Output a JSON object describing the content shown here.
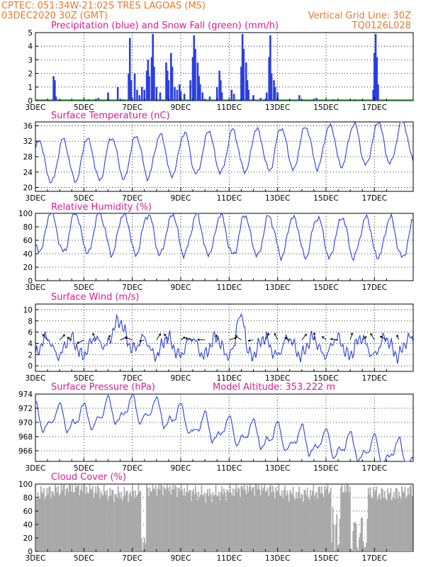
{
  "header": {
    "line1": "CPTEC:   051:34W-21:02S   TRES LAGOAS (MS)",
    "line2": "03DEC2020 30Z (GMT)",
    "right1": "Vertical Grid Line: 30Z",
    "right2": "TQ0126L028"
  },
  "colors": {
    "header": "#e8782a",
    "title": "#e0189b",
    "line": "#2b3fe0",
    "precip": "#2b3fe0",
    "snow": "#22aa22",
    "cloud": "#a9a9a9",
    "wind_arrow": "#000000"
  },
  "x_ticks": [
    "3DEC",
    "5DEC",
    "7DEC",
    "9DEC",
    "11DEC",
    "13DEC",
    "15DEC",
    "17DEC"
  ],
  "chart_data": [
    {
      "type": "bar",
      "title": "Precipitation (blue) and Snow Fall (green) (mm/h)",
      "ylim": [
        0,
        5
      ],
      "yticks": [
        0,
        1,
        2,
        3,
        4,
        5
      ],
      "x_range_days": [
        3,
        18.6
      ],
      "precip": [
        [
          3.75,
          1.8
        ],
        [
          3.8,
          1.5
        ],
        [
          3.85,
          0.3
        ],
        [
          5.2,
          0.1
        ],
        [
          5.6,
          0.2
        ],
        [
          6.0,
          0.6
        ],
        [
          6.4,
          1.0
        ],
        [
          6.6,
          0.1
        ],
        [
          6.85,
          2.0
        ],
        [
          6.9,
          4.6
        ],
        [
          6.95,
          1.5
        ],
        [
          7.1,
          2.0
        ],
        [
          7.2,
          0.8
        ],
        [
          7.3,
          0.4
        ],
        [
          7.4,
          1.0
        ],
        [
          7.5,
          0.8
        ],
        [
          7.6,
          2.2
        ],
        [
          7.65,
          3.0
        ],
        [
          7.7,
          1.8
        ],
        [
          7.8,
          3.2
        ],
        [
          7.85,
          4.9
        ],
        [
          7.9,
          2.5
        ],
        [
          8.0,
          1.0
        ],
        [
          8.15,
          0.6
        ],
        [
          8.4,
          2.8
        ],
        [
          8.45,
          2.2
        ],
        [
          8.5,
          1.5
        ],
        [
          8.6,
          3.5
        ],
        [
          8.65,
          2.5
        ],
        [
          8.75,
          1.0
        ],
        [
          8.85,
          0.8
        ],
        [
          8.95,
          1.2
        ],
        [
          9.0,
          0.7
        ],
        [
          9.15,
          0.5
        ],
        [
          9.4,
          1.5
        ],
        [
          9.5,
          3.2
        ],
        [
          9.55,
          4.8
        ],
        [
          9.6,
          3.8
        ],
        [
          9.7,
          2.8
        ],
        [
          9.75,
          1.8
        ],
        [
          9.8,
          1.2
        ],
        [
          9.9,
          0.6
        ],
        [
          10.2,
          0.3
        ],
        [
          10.5,
          1.0
        ],
        [
          10.6,
          2.2
        ],
        [
          10.65,
          1.5
        ],
        [
          10.7,
          0.6
        ],
        [
          11.1,
          0.8
        ],
        [
          11.2,
          0.5
        ],
        [
          11.5,
          2.5
        ],
        [
          11.55,
          4.9
        ],
        [
          11.6,
          3.8
        ],
        [
          11.7,
          2.8
        ],
        [
          11.75,
          1.5
        ],
        [
          11.8,
          0.8
        ],
        [
          12.0,
          0.4
        ],
        [
          12.3,
          0.2
        ],
        [
          12.55,
          0.6
        ],
        [
          12.65,
          3.2
        ],
        [
          12.7,
          4.8
        ],
        [
          12.75,
          2.0
        ],
        [
          12.85,
          1.5
        ],
        [
          12.9,
          1.0
        ],
        [
          13.0,
          0.6
        ],
        [
          13.9,
          0.4
        ],
        [
          14.6,
          0.2
        ],
        [
          15.3,
          0.1
        ],
        [
          16.2,
          0.1
        ],
        [
          16.95,
          0.8
        ],
        [
          17.0,
          3.5
        ],
        [
          17.05,
          4.9
        ],
        [
          17.1,
          3.2
        ],
        [
          17.15,
          1.2
        ]
      ]
    },
    {
      "type": "line",
      "title": "Surface Temperature (nC)",
      "ylim": [
        19,
        37
      ],
      "yticks": [
        20,
        24,
        28,
        32,
        36
      ]
    },
    {
      "type": "line",
      "title": "Relative Humidity (%)",
      "ylim": [
        0,
        100
      ],
      "yticks": [
        0,
        20,
        40,
        60,
        80,
        100
      ]
    },
    {
      "type": "line",
      "title": "Surface Wind (m/s)",
      "ylim": [
        -1,
        11
      ],
      "yticks": [
        0,
        2,
        4,
        6,
        8,
        10
      ]
    },
    {
      "type": "line",
      "title": "Surface Pressure (hPa)",
      "extra": "Model Altitude: 353.222 m",
      "ylim": [
        964.5,
        974
      ],
      "yticks": [
        966,
        968,
        970,
        972,
        974
      ]
    },
    {
      "type": "bar",
      "title": "Cloud Cover (%)",
      "ylim": [
        0,
        100
      ],
      "yticks": [
        0,
        20,
        40,
        60,
        80,
        100
      ]
    }
  ]
}
